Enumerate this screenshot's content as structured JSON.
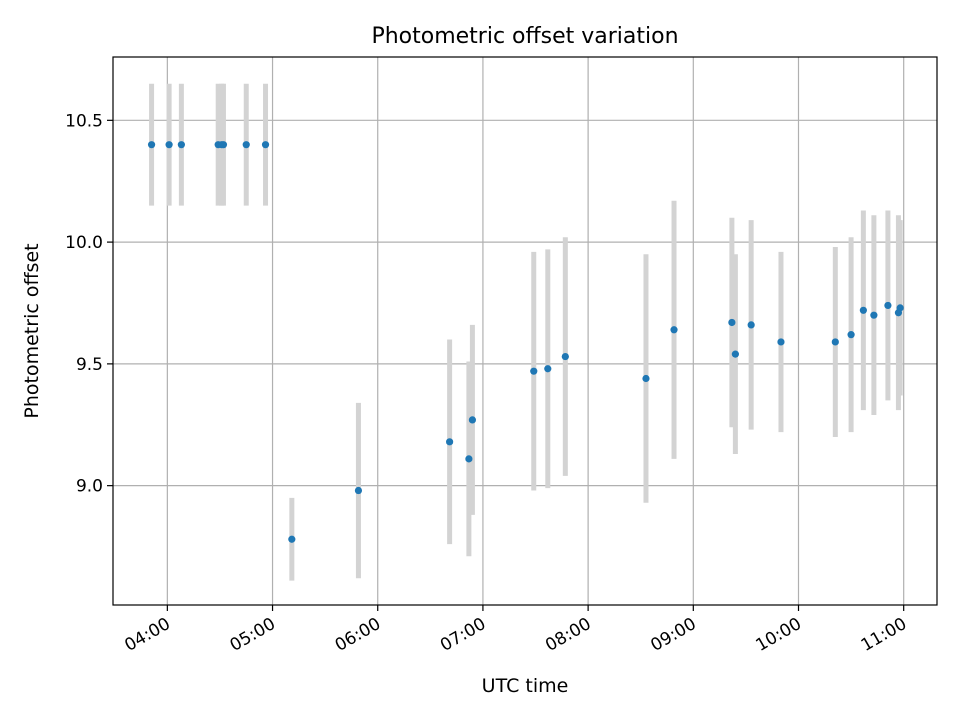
{
  "chart_data": {
    "type": "scatter",
    "title": "Photometric offset variation",
    "xlabel": "UTC time",
    "ylabel": "Photometric offset",
    "xlim": [
      "03:29",
      "11:19"
    ],
    "ylim": [
      8.51,
      10.76
    ],
    "x_ticks": [
      "04:00",
      "05:00",
      "06:00",
      "07:00",
      "08:00",
      "09:00",
      "10:00",
      "11:00"
    ],
    "y_ticks": [
      "9.0",
      "9.5",
      "10.0",
      "10.5"
    ],
    "grid": true,
    "legend": "none",
    "series": [
      {
        "marker_color": "#1f77b4",
        "errorbar_color": "#d3d3d3",
        "points": [
          {
            "time": "03:51",
            "y": 10.4,
            "err": 0.25
          },
          {
            "time": "04:01",
            "y": 10.4,
            "err": 0.25
          },
          {
            "time": "04:08",
            "y": 10.4,
            "err": 0.25
          },
          {
            "time": "04:29",
            "y": 10.4,
            "err": 0.25
          },
          {
            "time": "04:31",
            "y": 10.4,
            "err": 0.25
          },
          {
            "time": "04:32",
            "y": 10.4,
            "err": 0.25
          },
          {
            "time": "04:45",
            "y": 10.4,
            "err": 0.25
          },
          {
            "time": "04:56",
            "y": 10.4,
            "err": 0.25
          },
          {
            "time": "05:11",
            "y": 8.78,
            "err": 0.17
          },
          {
            "time": "05:49",
            "y": 8.98,
            "err": 0.36
          },
          {
            "time": "06:41",
            "y": 9.18,
            "err": 0.42
          },
          {
            "time": "06:52",
            "y": 9.11,
            "err": 0.4
          },
          {
            "time": "06:54",
            "y": 9.27,
            "err": 0.39
          },
          {
            "time": "07:29",
            "y": 9.47,
            "err": 0.49
          },
          {
            "time": "07:37",
            "y": 9.48,
            "err": 0.49
          },
          {
            "time": "07:47",
            "y": 9.53,
            "err": 0.49
          },
          {
            "time": "08:33",
            "y": 9.44,
            "err": 0.51
          },
          {
            "time": "08:49",
            "y": 9.64,
            "err": 0.53
          },
          {
            "time": "09:22",
            "y": 9.67,
            "err": 0.43
          },
          {
            "time": "09:24",
            "y": 9.54,
            "err": 0.41
          },
          {
            "time": "09:33",
            "y": 9.66,
            "err": 0.43
          },
          {
            "time": "09:50",
            "y": 9.59,
            "err": 0.37
          },
          {
            "time": "10:21",
            "y": 9.59,
            "err": 0.39
          },
          {
            "time": "10:30",
            "y": 9.62,
            "err": 0.4
          },
          {
            "time": "10:37",
            "y": 9.72,
            "err": 0.41
          },
          {
            "time": "10:43",
            "y": 9.7,
            "err": 0.41
          },
          {
            "time": "10:51",
            "y": 9.74,
            "err": 0.39
          },
          {
            "time": "10:57",
            "y": 9.71,
            "err": 0.4
          },
          {
            "time": "10:58",
            "y": 9.73,
            "err": 0.36
          }
        ]
      }
    ]
  }
}
